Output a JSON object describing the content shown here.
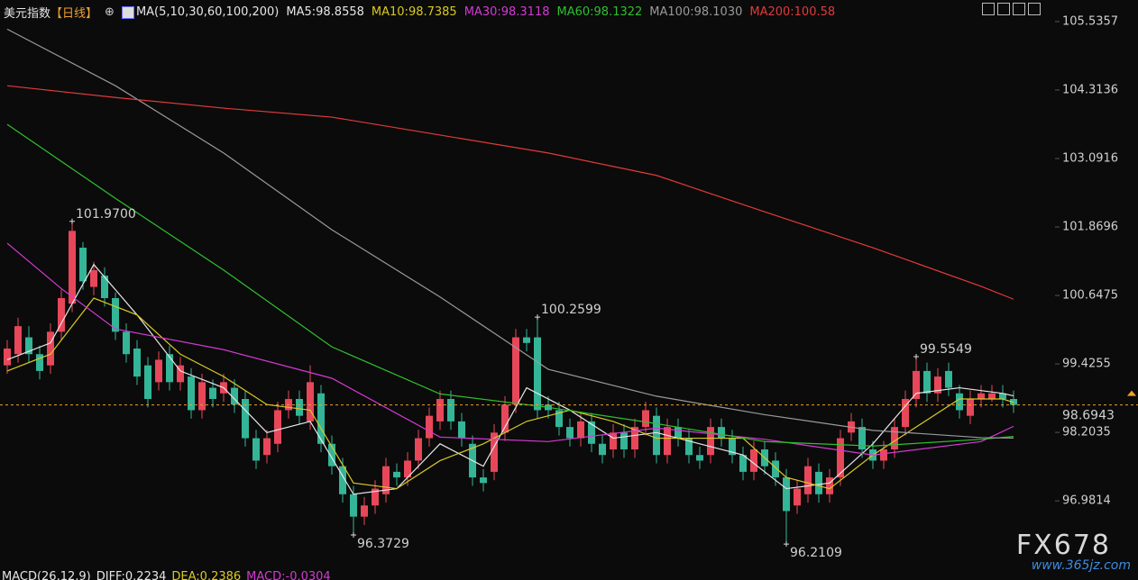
{
  "chart_data": {
    "type": "candlestick",
    "title": "美元指数",
    "period": "【日线】",
    "indicator": "MA(5,10,30,60,100,200)",
    "up_color": "#e8475a",
    "down_color": "#34b597",
    "open": [
      99.4,
      99.6,
      99.9,
      99.6,
      99.4,
      100.0,
      100.5,
      101.5,
      100.8,
      101.0,
      100.6,
      100.0,
      99.7,
      99.4,
      99.1,
      99.6,
      99.1,
      99.2,
      98.6,
      99.0,
      98.9,
      99.0,
      98.8,
      98.1,
      97.8,
      98.0,
      98.6,
      98.8,
      98.4,
      98.9,
      98.0,
      97.6,
      97.1,
      96.7,
      96.9,
      97.1,
      97.5,
      97.4,
      97.7,
      98.1,
      98.4,
      98.8,
      98.4,
      98.0,
      97.4,
      97.5,
      98.2,
      98.7,
      99.9,
      99.9,
      98.7,
      98.6,
      98.3,
      98.1,
      98.4,
      98.0,
      97.9,
      98.2,
      97.9,
      98.3,
      98.5,
      97.8,
      98.3,
      98.1,
      97.8,
      97.8,
      98.3,
      98.1,
      97.8,
      97.5,
      97.9,
      97.7,
      97.4,
      96.9,
      97.1,
      97.5,
      97.1,
      97.4,
      98.2,
      98.3,
      97.9,
      97.7,
      97.9,
      98.3,
      98.8,
      99.3,
      98.9,
      99.3,
      98.9,
      98.5,
      98.8,
      98.8,
      98.9,
      98.8
    ],
    "high": [
      99.85,
      100.25,
      100.1,
      99.75,
      100.15,
      100.75,
      101.97,
      101.6,
      101.25,
      101.15,
      100.7,
      100.15,
      99.85,
      99.55,
      99.65,
      99.75,
      99.55,
      99.35,
      99.25,
      99.15,
      99.25,
      99.15,
      98.95,
      98.25,
      98.25,
      98.75,
      98.95,
      98.95,
      99.4,
      99.05,
      98.15,
      97.75,
      97.25,
      97.05,
      97.35,
      97.75,
      97.65,
      97.85,
      98.25,
      98.65,
      98.95,
      98.95,
      98.55,
      98.15,
      97.55,
      98.35,
      98.85,
      100.05,
      100.05,
      100.2599,
      98.85,
      98.75,
      98.45,
      98.55,
      98.55,
      98.15,
      98.35,
      98.35,
      98.45,
      98.75,
      98.65,
      98.45,
      98.45,
      98.25,
      97.95,
      98.45,
      98.45,
      98.25,
      97.95,
      98.05,
      98.05,
      97.85,
      97.55,
      97.35,
      97.75,
      97.65,
      97.55,
      98.25,
      98.55,
      98.45,
      98.05,
      98.05,
      98.45,
      98.95,
      99.5549,
      99.45,
      99.35,
      99.45,
      99.05,
      98.95,
      99.05,
      99.05,
      99.05,
      98.95
    ],
    "low": [
      99.25,
      99.45,
      99.45,
      99.15,
      99.25,
      99.85,
      100.35,
      100.75,
      100.65,
      100.45,
      99.85,
      99.45,
      99.05,
      98.65,
      98.95,
      98.95,
      98.95,
      98.45,
      98.45,
      98.65,
      98.75,
      98.55,
      97.95,
      97.55,
      97.65,
      97.85,
      98.45,
      98.35,
      98.25,
      97.85,
      97.45,
      96.95,
      96.3729,
      96.55,
      96.75,
      96.95,
      97.25,
      97.25,
      97.55,
      97.95,
      98.25,
      98.25,
      97.95,
      97.25,
      97.15,
      97.35,
      98.05,
      98.55,
      99.65,
      98.45,
      98.45,
      98.15,
      97.95,
      97.95,
      97.85,
      97.65,
      97.75,
      97.75,
      97.75,
      98.15,
      97.65,
      97.65,
      97.95,
      97.65,
      97.55,
      97.65,
      97.95,
      97.65,
      97.35,
      97.35,
      97.45,
      97.25,
      96.2109,
      96.75,
      96.95,
      96.95,
      96.95,
      97.25,
      98.05,
      97.75,
      97.55,
      97.55,
      97.75,
      98.15,
      98.65,
      98.75,
      98.75,
      98.85,
      98.45,
      98.35,
      98.65,
      98.75,
      98.65,
      98.55
    ],
    "close": [
      99.7,
      100.1,
      99.6,
      99.3,
      100.0,
      100.6,
      101.8,
      100.9,
      101.1,
      100.6,
      100.0,
      99.6,
      99.2,
      98.8,
      99.5,
      99.1,
      99.4,
      98.6,
      99.1,
      98.8,
      99.1,
      98.7,
      98.1,
      97.7,
      98.1,
      98.6,
      98.8,
      98.5,
      99.1,
      98.0,
      97.6,
      97.1,
      96.7,
      96.9,
      97.2,
      97.6,
      97.4,
      97.7,
      98.1,
      98.5,
      98.8,
      98.4,
      98.1,
      97.4,
      97.3,
      98.2,
      98.7,
      99.9,
      99.8,
      98.6,
      98.6,
      98.3,
      98.1,
      98.4,
      98.0,
      97.8,
      98.2,
      97.9,
      98.3,
      98.6,
      97.8,
      98.3,
      98.1,
      97.8,
      97.7,
      98.3,
      98.1,
      97.8,
      97.5,
      97.9,
      97.6,
      97.4,
      96.8,
      97.2,
      97.6,
      97.1,
      97.4,
      98.1,
      98.4,
      97.9,
      97.7,
      97.9,
      98.3,
      98.8,
      99.3,
      98.9,
      99.2,
      99.0,
      98.6,
      98.8,
      98.9,
      98.9,
      98.8,
      98.6943
    ],
    "series": [
      {
        "name": "MA5",
        "header_label": "MA5:98.8558",
        "color": "#e6e6e6",
        "x": [
          0,
          4,
          8,
          12,
          16,
          20,
          24,
          28,
          32,
          36,
          40,
          44,
          48,
          52,
          56,
          60,
          64,
          68,
          72,
          76,
          80,
          84,
          88,
          92,
          93
        ],
        "values": [
          99.5,
          99.8,
          101.2,
          100.3,
          99.3,
          99.0,
          98.2,
          98.4,
          97.1,
          97.2,
          98.0,
          97.6,
          99.0,
          98.6,
          98.1,
          98.2,
          98.0,
          97.8,
          97.2,
          97.3,
          98.0,
          98.9,
          99.0,
          98.9,
          98.8558
        ]
      },
      {
        "name": "MA10",
        "header_label": "MA10:98.7385",
        "color": "#d9c922",
        "x": [
          0,
          4,
          8,
          12,
          16,
          20,
          24,
          28,
          32,
          36,
          40,
          44,
          48,
          52,
          56,
          60,
          64,
          68,
          72,
          76,
          80,
          84,
          88,
          92,
          93
        ],
        "values": [
          99.3,
          99.6,
          100.6,
          100.3,
          99.6,
          99.2,
          98.7,
          98.6,
          97.3,
          97.2,
          97.7,
          98.0,
          98.4,
          98.6,
          98.4,
          98.1,
          98.1,
          98.1,
          97.4,
          97.2,
          97.8,
          98.3,
          98.8,
          98.8,
          98.7385
        ]
      },
      {
        "name": "MA30",
        "header_label": "MA30:98.3118",
        "color": "#d43ad4",
        "x": [
          0,
          5,
          10,
          20,
          30,
          40,
          50,
          60,
          70,
          80,
          90,
          93
        ],
        "values": [
          101.58,
          100.77,
          100.05,
          99.68,
          99.17,
          98.12,
          98.04,
          98.28,
          98.08,
          97.8,
          98.04,
          98.3118
        ]
      },
      {
        "name": "MA60",
        "header_label": "MA60:98.1322",
        "color": "#2fbf2f",
        "x": [
          0,
          10,
          20,
          30,
          40,
          50,
          60,
          70,
          80,
          90,
          93
        ],
        "values": [
          103.7,
          102.38,
          101.1,
          99.73,
          98.89,
          98.65,
          98.36,
          98.04,
          97.96,
          98.08,
          98.1322
        ]
      },
      {
        "name": "MA100",
        "header_label": "MA100:98.1030",
        "color": "#9a9a9a",
        "x": [
          0,
          10,
          20,
          30,
          40,
          50,
          60,
          70,
          80,
          90,
          93
        ],
        "values": [
          105.4,
          104.39,
          103.19,
          101.82,
          100.62,
          99.33,
          98.85,
          98.52,
          98.24,
          98.11,
          98.103
        ]
      },
      {
        "name": "MA200",
        "header_label": "MA200:100.58",
        "color": "#e23a3a",
        "x": [
          0,
          10,
          20,
          30,
          40,
          50,
          60,
          70,
          80,
          90,
          93
        ],
        "values": [
          104.39,
          104.18,
          103.99,
          103.83,
          103.51,
          103.19,
          102.79,
          102.14,
          101.5,
          100.81,
          100.58
        ]
      }
    ],
    "annotations": [
      {
        "index": 6,
        "value": 101.97,
        "label": "101.9700",
        "color": "#e8475a"
      },
      {
        "index": 32,
        "value": 96.3729,
        "label": "96.3729",
        "color": "#34b597"
      },
      {
        "index": 49,
        "value": 100.2599,
        "label": "100.2599",
        "color": "#e8475a"
      },
      {
        "index": 72,
        "value": 96.2109,
        "label": "96.2109",
        "color": "#34b597"
      },
      {
        "index": 84,
        "value": 99.5549,
        "label": "99.5549",
        "color": "#e8475a"
      }
    ],
    "last_price": 98.6943,
    "last_price_color": "#f0a030",
    "ylim": [
      96.1,
      105.92
    ],
    "yticks": [
      96.9814,
      98.2035,
      99.4255,
      100.6475,
      101.8696,
      103.0916,
      104.3136,
      105.5357
    ],
    "macd": {
      "label": "MACD(26,12,9)",
      "diff": "DIFF:0.2234",
      "dea": "DEA:0.2386",
      "macd": "MACD:-0.0304"
    }
  },
  "watermark": {
    "brand": "FX678",
    "site": "www.365jz.com"
  }
}
